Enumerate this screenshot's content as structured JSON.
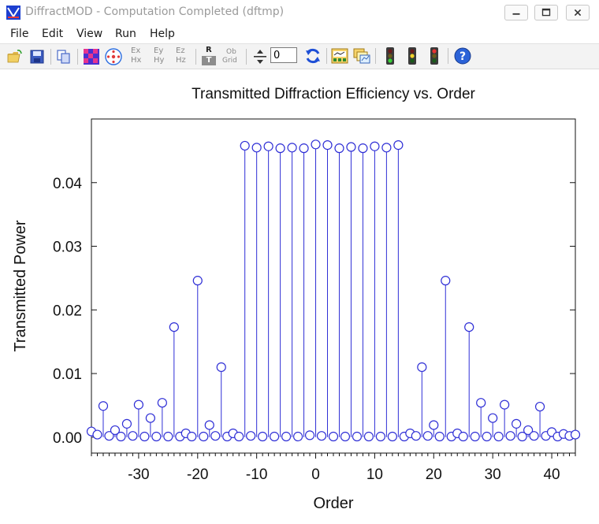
{
  "window": {
    "title": "DiffractMOD - Computation Completed (dftmp)",
    "colors": {
      "title_text": "#9a9a9a",
      "toolbar_bg": "#f3f3f3",
      "plot_series": "#2f2fd6"
    }
  },
  "menu": [
    "File",
    "Edit",
    "View",
    "Run",
    "Help"
  ],
  "toolbar": {
    "field_labels": {
      "ex": "Ex",
      "hx": "Hx",
      "ey": "Ey",
      "hy": "Hy",
      "ez": "Ez",
      "hz": "Hz",
      "r": "R",
      "t": "T",
      "ob": "Ob",
      "grid": "Grid"
    },
    "order_value": "0",
    "icons": [
      "open-folder-icon",
      "save-icon",
      "copy-icon",
      "pattern-grid-icon",
      "target-icon",
      "field-selector",
      "rt-toggle",
      "obj-grid-toggle",
      "order-spinner-icon",
      "refresh-icon",
      "data-table-icon",
      "plot-windows-icon",
      "traffic-light-icon",
      "traffic-light-icon",
      "traffic-light-icon",
      "help-icon"
    ]
  },
  "chart_data": {
    "type": "stem",
    "title": "Transmitted Diffraction Efficiency vs. Order",
    "xlabel": "Order",
    "ylabel": "Transmitted Power",
    "xlim": [
      -38,
      44
    ],
    "ylim": [
      -0.0025,
      0.05
    ],
    "xticks": [
      -30,
      -20,
      -10,
      0,
      10,
      20,
      30,
      40
    ],
    "yticks": [
      0.0,
      0.01,
      0.02,
      0.03,
      0.04
    ],
    "ytick_labels": [
      "0.00",
      "0.01",
      "0.02",
      "0.03",
      "0.04"
    ],
    "xtick_labels": [
      "-30",
      "-20",
      "-10",
      "0",
      "10",
      "20",
      "30",
      "40"
    ],
    "grid": false,
    "series": [
      {
        "x": [
          -38,
          -37,
          -36,
          -35,
          -34,
          -33,
          -32,
          -31,
          -30,
          -29,
          -28,
          -27,
          -26,
          -25,
          -24,
          -23,
          -22,
          -21,
          -20,
          -19,
          -18,
          -17,
          -16,
          -15,
          -14,
          -13,
          -12,
          -11,
          -10,
          -9,
          -8,
          -7,
          -6,
          -5,
          -4,
          -3,
          -2,
          -1,
          0,
          1,
          2,
          3,
          4,
          5,
          6,
          7,
          8,
          9,
          10,
          11,
          12,
          13,
          14,
          15,
          16,
          17,
          18,
          19,
          20,
          21,
          22,
          23,
          24,
          25,
          26,
          27,
          28,
          29,
          30,
          31,
          32,
          33,
          34,
          35,
          36,
          37,
          38,
          39,
          40,
          41,
          42,
          43,
          44
        ],
        "y": [
          0.0009,
          0.0004,
          0.0049,
          0.0002,
          0.0011,
          0.0001,
          0.0021,
          0.0002,
          0.0051,
          0.0001,
          0.003,
          0.0001,
          0.0054,
          0.0001,
          0.0173,
          0.0001,
          0.0006,
          0.0001,
          0.0246,
          0.0001,
          0.0019,
          0.0002,
          0.011,
          0.0001,
          0.0006,
          0.0001,
          0.0458,
          0.0002,
          0.0455,
          0.0001,
          0.0457,
          0.0001,
          0.0454,
          0.0001,
          0.0455,
          0.0001,
          0.0454,
          0.0003,
          0.046,
          0.0002,
          0.0459,
          0.0001,
          0.0454,
          0.0001,
          0.0456,
          0.0001,
          0.0454,
          0.0001,
          0.0457,
          0.0001,
          0.0455,
          0.0001,
          0.0459,
          0.0001,
          0.0006,
          0.0002,
          0.011,
          0.0002,
          0.0019,
          0.0001,
          0.0246,
          0.0001,
          0.0006,
          0.0001,
          0.0173,
          0.0001,
          0.0054,
          0.0001,
          0.003,
          0.0001,
          0.0051,
          0.0002,
          0.0021,
          0.0001,
          0.0011,
          0.0002,
          0.0048,
          0.0002,
          0.0008,
          0.0001,
          0.0005,
          0.0002,
          0.0004
        ]
      }
    ]
  }
}
